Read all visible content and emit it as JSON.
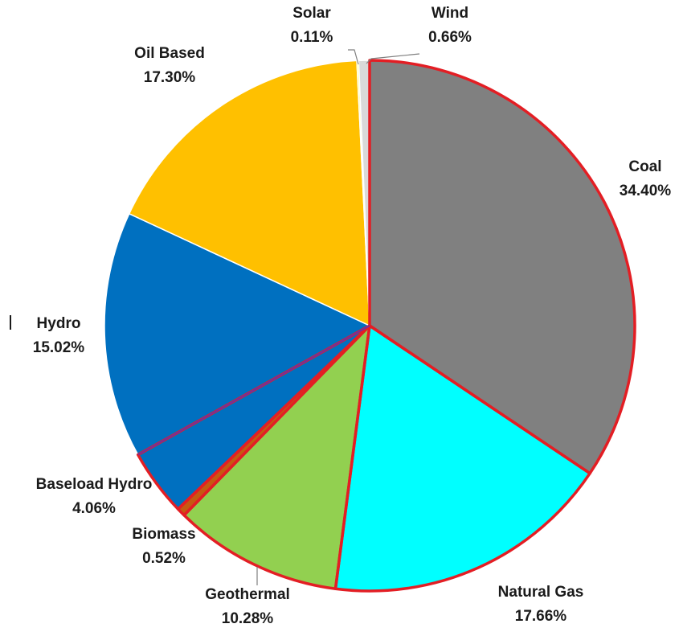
{
  "chart_data": {
    "type": "pie",
    "title": "",
    "legend": "none",
    "colors_note_free": true,
    "slices": [
      {
        "name": "Coal",
        "value": 34.4,
        "label": "34.40%",
        "color": "#808080",
        "highlight": true
      },
      {
        "name": "Natural Gas",
        "value": 17.66,
        "label": "17.66%",
        "color": "#00FFFF",
        "highlight": true
      },
      {
        "name": "Geothermal",
        "value": 10.28,
        "label": "10.28%",
        "color": "#92D050",
        "highlight": true
      },
      {
        "name": "Biomass",
        "value": 0.52,
        "label": "0.52%",
        "color": "#C65911",
        "highlight": true
      },
      {
        "name": "Baseload Hydro",
        "value": 4.06,
        "label": "4.06%",
        "color": "#0070C0",
        "highlight": true
      },
      {
        "name": "Hydro",
        "value": 15.02,
        "label": "15.02%",
        "color": "#0070C0",
        "highlight": false
      },
      {
        "name": "Oil Based",
        "value": 17.3,
        "label": "17.30%",
        "color": "#FFC000",
        "highlight": false
      },
      {
        "name": "Solar",
        "value": 0.11,
        "label": "0.11%",
        "color": "#FFFF66",
        "highlight": false
      },
      {
        "name": "Wind",
        "value": 0.66,
        "label": "0.66%",
        "color": "#D9D9D9",
        "highlight": false
      }
    ],
    "highlight_color": "#E31E24"
  }
}
